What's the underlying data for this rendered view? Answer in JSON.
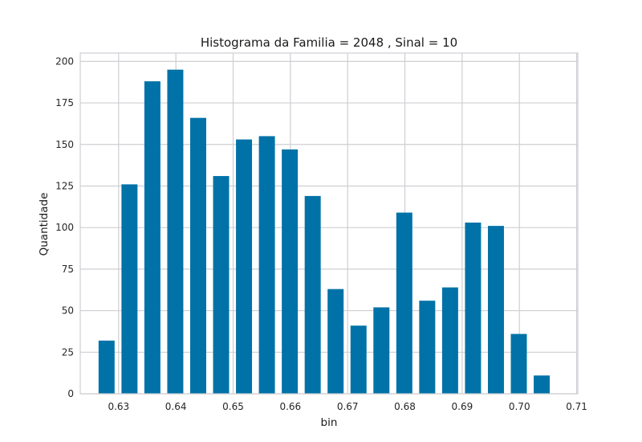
{
  "chart_data": {
    "type": "bar",
    "title": "Histograma da Familia = 2048 , Sinal = 10",
    "xlabel": "bin",
    "ylabel": "Quantidade",
    "xlim": [
      0.6233,
      0.7102
    ],
    "ylim": [
      0,
      205
    ],
    "xticks": [
      0.63,
      0.64,
      0.65,
      0.66,
      0.67,
      0.68,
      0.69,
      0.7,
      0.71
    ],
    "xtick_labels": [
      "0.63",
      "0.64",
      "0.65",
      "0.66",
      "0.67",
      "0.68",
      "0.69",
      "0.70",
      "0.71"
    ],
    "yticks": [
      0,
      25,
      50,
      75,
      100,
      125,
      150,
      175,
      200
    ],
    "ytick_labels": [
      "0",
      "25",
      "50",
      "75",
      "100",
      "125",
      "150",
      "175",
      "200"
    ],
    "bar_width": 0.0028,
    "x": [
      0.6279,
      0.6319,
      0.6359,
      0.6399,
      0.6439,
      0.6479,
      0.6519,
      0.6559,
      0.6599,
      0.6639,
      0.6679,
      0.6719,
      0.6759,
      0.6799,
      0.6839,
      0.6879,
      0.6919,
      0.6959,
      0.6999,
      0.7039
    ],
    "values": [
      32,
      126,
      188,
      195,
      166,
      131,
      153,
      155,
      147,
      119,
      63,
      41,
      52,
      109,
      56,
      64,
      103,
      101,
      36,
      11
    ],
    "grid": true,
    "colors": {
      "bar": "#0072a8",
      "grid": "#cfcfd4",
      "background": "#ffffff",
      "spine": "#cfcfd4"
    }
  }
}
